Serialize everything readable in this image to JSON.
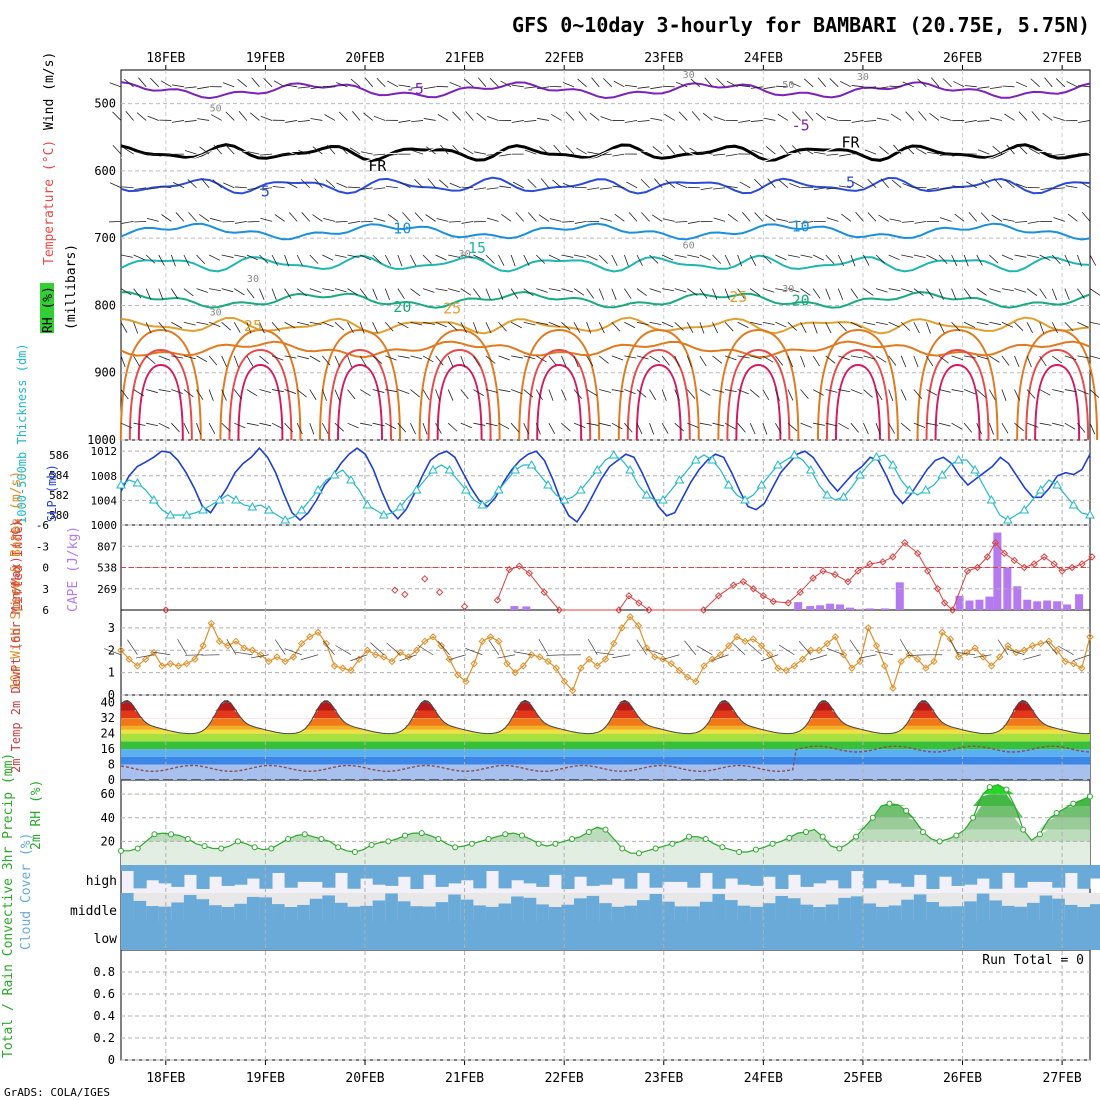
{
  "header": {
    "title": "GFS 0~10day 3-hourly for BAMBARI (20.75E, 5.75N)",
    "credit": "GrADS: COLA/IGES"
  },
  "colors": {
    "purple": "#7b22b8",
    "black": "#000000",
    "blue1": "#2b4bd6",
    "blue2": "#1c8fdc",
    "cyan": "#1eb7b0",
    "teal": "#1aaa80",
    "orange1": "#e0a030",
    "orange2": "#e07a20",
    "red1": "#e84a4a",
    "red2": "#d41a5c",
    "slp": "#1f3fcf",
    "thickness": "#22b8c8",
    "lifted": "#d94040",
    "cape": "#b57af0",
    "wind": "#e0902a",
    "rh2m": "#2ca82c",
    "cloud": "#6aaad8",
    "cloud_bg": "#f2f0f8",
    "cloud_gap": "#e8e8e8",
    "grid": "#b0b0b0"
  },
  "axes": {
    "date_labels": [
      "18FEB",
      "19FEB",
      "20FEB",
      "21FEB",
      "22FEB",
      "23FEB",
      "24FEB",
      "25FEB",
      "26FEB",
      "27FEB"
    ]
  },
  "chart_data": [
    {
      "type": "contour",
      "panel": "upper-air",
      "labels": {
        "rh": "RH (%)",
        "temperature": "Temperature (°C)",
        "wind": "Wind (m/s)",
        "pressure": "(millibars)"
      },
      "y_ticks": [
        500,
        600,
        700,
        800,
        900,
        1000
      ],
      "ylim": [
        1000,
        450
      ],
      "rh_labels": [
        {
          "date": "18FEB12",
          "p": 512,
          "text": "50"
        },
        {
          "date": "18FEB12",
          "p": 815,
          "text": "30"
        },
        {
          "date": "19FEB21",
          "p": 266,
          "text": ""
        },
        {
          "date": "18FEB21",
          "p": 765,
          "text": "30"
        },
        {
          "date": "21FEB",
          "p": 728,
          "text": "30"
        },
        {
          "date": "23FEB06",
          "p": 462,
          "text": "30"
        },
        {
          "date": "23FEB06",
          "p": 715,
          "text": "60"
        },
        {
          "date": "24FEB06",
          "p": 477,
          "text": "50"
        },
        {
          "date": "24FEB06",
          "p": 780,
          "text": "30"
        },
        {
          "date": "25FEB",
          "p": 465,
          "text": "30"
        }
      ],
      "contour_labels": [
        {
          "date": "20FEB12",
          "p": 486,
          "text": "-5",
          "color": "purple"
        },
        {
          "date": "24FEB09",
          "p": 540,
          "text": "-5",
          "color": "purple"
        },
        {
          "date": "20FEB03",
          "p": 600,
          "text": "FR",
          "color": "black"
        },
        {
          "date": "24FEB21",
          "p": 565,
          "text": "FR",
          "color": "black"
        },
        {
          "date": "19FEB",
          "p": 638,
          "text": "5",
          "color": "blue1"
        },
        {
          "date": "24FEB21",
          "p": 625,
          "text": "5",
          "color": "blue1"
        },
        {
          "date": "20FEB09",
          "p": 693,
          "text": "10",
          "color": "blue2"
        },
        {
          "date": "24FEB09",
          "p": 690,
          "text": "10",
          "color": "blue2"
        },
        {
          "date": "21FEB03",
          "p": 722,
          "text": "15",
          "color": "cyan"
        },
        {
          "date": "20FEB09",
          "p": 810,
          "text": "20",
          "color": "teal"
        },
        {
          "date": "24FEB09",
          "p": 800,
          "text": "20",
          "color": "teal"
        },
        {
          "date": "20FEB21",
          "p": 812,
          "text": "25",
          "color": "orange1"
        },
        {
          "date": "23FEB18",
          "p": 795,
          "text": "25",
          "color": "orange1"
        },
        {
          "date": "18FEB21",
          "p": 838,
          "text": "25",
          "color": "orange1"
        }
      ]
    },
    {
      "type": "line",
      "panel": "slp-thickness",
      "labels": {
        "left": "1000-500mb Thickness (dm)",
        "right": "SLP (mb)"
      },
      "left_ticks": [
        580,
        582,
        584,
        586
      ],
      "right_ticks": [
        1000,
        1004,
        1008,
        1012
      ],
      "ylim_slp": [
        1000,
        1013
      ],
      "series": [
        {
          "name": "SLP (mb)",
          "values": [
            1005.5,
            1008,
            1009.5,
            1010.2,
            1011,
            1012,
            1011.8,
            1010.5,
            1008.5,
            1006,
            1003,
            1002,
            1004,
            1006,
            1008.5,
            1010,
            1011,
            1012.5,
            1011,
            1008.5,
            1005,
            1002,
            1000.8,
            1002,
            1004,
            1006.5,
            1008,
            1010,
            1011.5,
            1012.5,
            1011.5,
            1009,
            1005.5,
            1002.5,
            1001,
            1002.5,
            1005,
            1008,
            1010.5,
            1011.5,
            1012,
            1011,
            1008.5,
            1006,
            1004,
            1003,
            1004.5,
            1007,
            1009,
            1010.5,
            1011.5,
            1012,
            1010.5,
            1007.5,
            1004,
            1001.5,
            1000.5,
            1002.5,
            1005,
            1007.5,
            1009.5,
            1010.5,
            1011.5,
            1011,
            1008.5,
            1005.5,
            1003,
            1001.5,
            1002,
            1004.5,
            1007,
            1009,
            1010.5,
            1011.5,
            1011,
            1008.5,
            1005.5,
            1003,
            1002.5,
            1003.5,
            1006,
            1008.5,
            1010,
            1011.5,
            1012,
            1011,
            1009,
            1007,
            1005.5,
            1007,
            1008.5,
            1009.5,
            1011,
            1010.5,
            1008,
            1005,
            1003.5,
            1005,
            1007,
            1009,
            1010.5,
            1011,
            1010,
            1008,
            1006.5,
            1007.5,
            1008.5,
            1009.5,
            1011,
            1010,
            1008,
            1006,
            1004.5,
            1004.5,
            1006,
            1008,
            1008.5,
            1008.2,
            1009,
            1011.5
          ]
        },
        {
          "name": "Thickness (dm)",
          "values": [
            583,
            583.5,
            583.2,
            582.5,
            581.5,
            580.5,
            580,
            580,
            580,
            580.2,
            580.5,
            581,
            581.5,
            582,
            581.5,
            581,
            580.8,
            581,
            580.5,
            580,
            579.5,
            579.8,
            580.5,
            581.5,
            582.5,
            583.5,
            584,
            584.5,
            583.5,
            582.5,
            581,
            580.5,
            580,
            580.2,
            580.8,
            581.8,
            582.5,
            583.5,
            584.5,
            585,
            584.5,
            583.5,
            582.5,
            581.5,
            581,
            581.5,
            582.5,
            583.5,
            584.5,
            585,
            585,
            584,
            583,
            582,
            581.5,
            581.8,
            582.5,
            583.5,
            584.5,
            585.5,
            586,
            585.5,
            584.5,
            583,
            582,
            581.5,
            581.5,
            582.5,
            583.5,
            584.5,
            585.5,
            586,
            585.5,
            584.5,
            583,
            582,
            581.5,
            582,
            583,
            584,
            585,
            585.5,
            586,
            585.5,
            584.5,
            583,
            582,
            581.5,
            581.8,
            582.8,
            584,
            585,
            585.8,
            586,
            585,
            583.5,
            582.5,
            582,
            582.5,
            583,
            584,
            585,
            585.5,
            585.5,
            584.5,
            583,
            581.5,
            580,
            579.5,
            580,
            580.5,
            581.5,
            582.5,
            583.5,
            583,
            582,
            581,
            580.2,
            580
          ]
        }
      ]
    },
    {
      "type": "bar",
      "panel": "lifted-cape",
      "labels": {
        "left": "Lifted Index",
        "right": "CAPE (J/kg)"
      },
      "left_ticks": [
        "-6",
        "-3",
        "0",
        "3",
        "6"
      ],
      "right_ticks": [
        "269",
        "538",
        "807"
      ],
      "lifted_index": [
        [
          21.33,
          4.6
        ],
        [
          21.45,
          0.3
        ],
        [
          21.55,
          -0.2
        ],
        [
          21.65,
          0.8
        ],
        [
          21.8,
          3.5
        ],
        [
          21.95,
          6
        ],
        [
          22.55,
          6
        ],
        [
          22.65,
          4
        ],
        [
          22.75,
          5
        ],
        [
          22.85,
          6
        ],
        [
          23.4,
          6
        ],
        [
          23.55,
          4
        ],
        [
          23.7,
          2.5
        ],
        [
          23.8,
          2
        ],
        [
          23.9,
          3
        ],
        [
          24.0,
          4
        ],
        [
          24.1,
          4.8
        ],
        [
          24.25,
          5
        ],
        [
          24.37,
          3.5
        ],
        [
          24.5,
          1.5
        ],
        [
          24.6,
          0.5
        ],
        [
          24.72,
          1
        ],
        [
          24.85,
          2
        ],
        [
          24.95,
          0.5
        ],
        [
          25.07,
          -0.5
        ],
        [
          25.2,
          -0.8
        ],
        [
          25.3,
          -1.5
        ],
        [
          25.42,
          -3.5
        ],
        [
          25.55,
          -2
        ],
        [
          25.65,
          0.5
        ],
        [
          25.75,
          3
        ],
        [
          25.82,
          5
        ],
        [
          25.9,
          6
        ],
        [
          26.05,
          0.5
        ],
        [
          26.15,
          0
        ],
        [
          26.25,
          -1.5
        ],
        [
          26.33,
          -3.5
        ],
        [
          26.42,
          -2
        ],
        [
          26.52,
          -1
        ],
        [
          26.62,
          0
        ],
        [
          26.72,
          -0.5
        ],
        [
          26.82,
          -1.5
        ],
        [
          26.92,
          -0.5
        ],
        [
          27.0,
          0.5
        ],
        [
          27.1,
          0
        ],
        [
          27.2,
          -0.5
        ],
        [
          27.3,
          -1.5
        ]
      ],
      "lifted_index_extra": [
        [
          18.0,
          6
        ],
        [
          20.3,
          3.2
        ],
        [
          20.4,
          3.8
        ],
        [
          20.6,
          1.6
        ],
        [
          20.75,
          3.5
        ],
        [
          21.0,
          5.5
        ]
      ],
      "cape": [
        [
          21.5,
          50
        ],
        [
          21.62,
          45
        ],
        [
          24.35,
          100
        ],
        [
          24.47,
          50
        ],
        [
          24.57,
          60
        ],
        [
          24.67,
          80
        ],
        [
          24.77,
          70
        ],
        [
          24.87,
          30
        ],
        [
          24.97,
          10
        ],
        [
          25.07,
          20
        ],
        [
          25.22,
          20
        ],
        [
          25.37,
          350
        ],
        [
          25.97,
          180
        ],
        [
          26.07,
          120
        ],
        [
          26.17,
          130
        ],
        [
          26.27,
          170
        ],
        [
          26.35,
          980
        ],
        [
          26.45,
          540
        ],
        [
          26.55,
          300
        ],
        [
          26.65,
          130
        ],
        [
          26.75,
          110
        ],
        [
          26.85,
          120
        ],
        [
          26.95,
          110
        ],
        [
          27.05,
          70
        ],
        [
          27.17,
          200
        ]
      ]
    },
    {
      "type": "line",
      "panel": "wind10m",
      "labels": {
        "left": "10m Wind Speed & Barbs (m/s)"
      },
      "y_ticks": [
        0,
        1,
        2,
        3
      ],
      "ylim": [
        0,
        3.8
      ],
      "series": [
        {
          "name": "10m wind",
          "values": [
            2.0,
            1.6,
            1.3,
            1.6,
            1.9,
            1.3,
            1.4,
            1.3,
            1.4,
            1.6,
            2.2,
            3.2,
            2.4,
            2.2,
            2.4,
            2.1,
            2.0,
            1.8,
            1.5,
            1.7,
            1.5,
            1.7,
            2.3,
            2.6,
            2.8,
            2.3,
            1.3,
            1.2,
            1.1,
            1.6,
            2.0,
            1.8,
            1.7,
            1.5,
            1.9,
            1.7,
            2.0,
            2.4,
            2.6,
            2.2,
            1.6,
            0.9,
            0.6,
            1.4,
            2.4,
            2.6,
            2.4,
            1.4,
            1.0,
            1.3,
            1.8,
            1.7,
            1.5,
            1.2,
            0.6,
            0.2,
            1.2,
            1.6,
            1.3,
            1.6,
            2.3,
            3.0,
            3.5,
            3.1,
            2.1,
            1.7,
            1.6,
            1.4,
            1.1,
            0.8,
            0.6,
            1.3,
            1.6,
            1.8,
            2.2,
            2.6,
            2.4,
            2.5,
            2.2,
            1.8,
            1.2,
            1.1,
            1.3,
            1.6,
            2.0,
            2.0,
            2.3,
            2.6,
            1.8,
            1.2,
            1.5,
            3.0,
            2.2,
            1.3,
            0.3,
            1.5,
            1.8,
            1.6,
            1.2,
            1.5,
            2.8,
            2.5,
            1.7,
            1.9,
            2.1,
            1.7,
            1.3,
            1.7,
            2.2,
            1.9,
            2.0,
            2.2,
            2.3,
            2.4,
            2.0,
            1.5,
            1.4,
            1.2,
            2.6
          ]
        }
      ]
    },
    {
      "type": "area",
      "panel": "temp2m",
      "labels": {
        "left": "2m Temp 2m DewPt (6hr Min/Max) (°C)"
      },
      "y_ticks": [
        0,
        8,
        16,
        24,
        32,
        40
      ],
      "ylim": [
        0,
        44
      ]
    },
    {
      "type": "area",
      "panel": "rh2m",
      "labels": {
        "left": "2m RH (%)"
      },
      "y_ticks": [
        20,
        40,
        60
      ],
      "ylim": [
        0,
        72
      ],
      "series": [
        {
          "name": "2m RH",
          "values": [
            12,
            12,
            14,
            20,
            26,
            27,
            26,
            25,
            22,
            18,
            16,
            14,
            14,
            16,
            20,
            18,
            15,
            13,
            14,
            18,
            22,
            25,
            26,
            24,
            22,
            20,
            15,
            12,
            11,
            13,
            17,
            19,
            20,
            22,
            25,
            27,
            27,
            25,
            22,
            18,
            15,
            16,
            18,
            20,
            22,
            24,
            26,
            27,
            25,
            22,
            18,
            16,
            18,
            20,
            22,
            24,
            28,
            32,
            30,
            22,
            14,
            10,
            10,
            12,
            14,
            16,
            18,
            20,
            24,
            24,
            22,
            18,
            15,
            13,
            11,
            11,
            13,
            15,
            18,
            20,
            23,
            27,
            28,
            30,
            24,
            16,
            14,
            18,
            24,
            32,
            40,
            50,
            52,
            51,
            46,
            38,
            28,
            22,
            20,
            22,
            25,
            30,
            40,
            58,
            66,
            68,
            64,
            50,
            30,
            21,
            26,
            38,
            44,
            48,
            52,
            55,
            58
          ]
        }
      ]
    },
    {
      "type": "bar",
      "panel": "cloud",
      "labels": {
        "left": "Cloud Cover (%)",
        "high": "high",
        "middle": "middle",
        "low": "low"
      }
    },
    {
      "type": "bar",
      "panel": "precip",
      "labels": {
        "left": "Total / Rain Convective 3hr Precip (mm)",
        "run_total": "Run Total = 0"
      },
      "y_ticks": [
        "0",
        "0.2",
        "0.4",
        "0.6",
        "0.8"
      ],
      "ylim": [
        0,
        1
      ],
      "values": []
    }
  ]
}
